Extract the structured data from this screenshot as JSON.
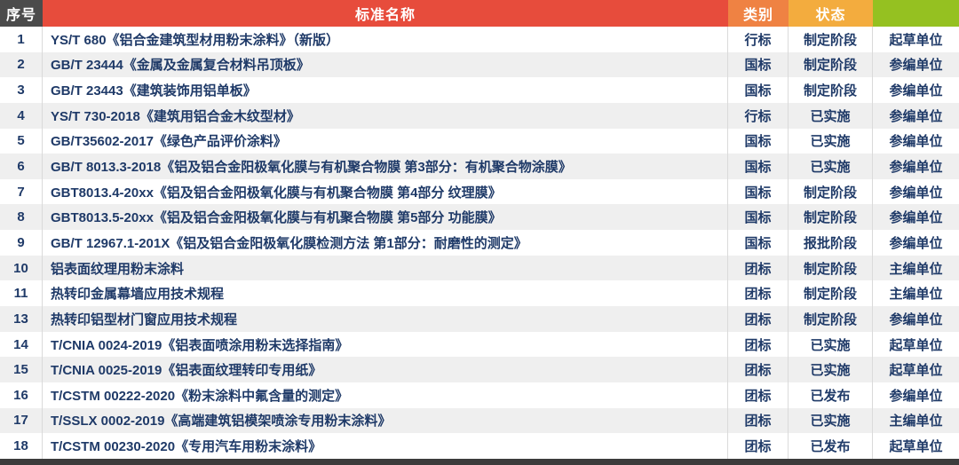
{
  "header": {
    "columns": [
      {
        "label": "序号",
        "bg": "#4b4b4b"
      },
      {
        "label": "标准名称",
        "bg": "#e74c3c"
      },
      {
        "label": "类别",
        "bg": "#ef8243"
      },
      {
        "label": "状态",
        "bg": "#f3ac3e"
      },
      {
        "label": "",
        "bg": "#95c121"
      }
    ]
  },
  "rows": [
    {
      "index": "1",
      "name": "YS/T 680《铝合金建筑型材用粉末涂料》（新版）",
      "category": "行标",
      "status": "制定阶段",
      "role": "起草单位"
    },
    {
      "index": "2",
      "name": "GB/T 23444《金属及金属复合材料吊顶板》",
      "category": "国标",
      "status": "制定阶段",
      "role": "参编单位"
    },
    {
      "index": "3",
      "name": "GB/T 23443《建筑装饰用铝单板》",
      "category": "国标",
      "status": "制定阶段",
      "role": "参编单位"
    },
    {
      "index": "4",
      "name": "YS/T 730-2018《建筑用铝合金木纹型材》",
      "category": "行标",
      "status": "已实施",
      "role": "参编单位"
    },
    {
      "index": "5",
      "name": "GB/T35602-2017《绿色产品评价涂料》",
      "category": "国标",
      "status": "已实施",
      "role": "参编单位"
    },
    {
      "index": "6",
      "name": "GB/T 8013.3-2018《铝及铝合金阳极氧化膜与有机聚合物膜 第3部分：有机聚合物涂膜》",
      "category": "国标",
      "status": "已实施",
      "role": "参编单位"
    },
    {
      "index": "7",
      "name": "GBT8013.4-20xx《铝及铝合金阳极氧化膜与有机聚合物膜 第4部分 纹理膜》",
      "category": "国标",
      "status": "制定阶段",
      "role": "参编单位"
    },
    {
      "index": "8",
      "name": "GBT8013.5-20xx《铝及铝合金阳极氧化膜与有机聚合物膜 第5部分 功能膜》",
      "category": "国标",
      "status": "制定阶段",
      "role": "参编单位"
    },
    {
      "index": "9",
      "name": "GB/T 12967.1-201X《铝及铝合金阳极氧化膜检测方法 第1部分：耐磨性的测定》",
      "category": "国标",
      "status": "报批阶段",
      "role": "参编单位"
    },
    {
      "index": "10",
      "name": "铝表面纹理用粉末涂料",
      "category": "团标",
      "status": "制定阶段",
      "role": "主编单位"
    },
    {
      "index": "11",
      "name": "热转印金属幕墙应用技术规程",
      "category": "团标",
      "status": "制定阶段",
      "role": "主编单位"
    },
    {
      "index": "13",
      "name": "热转印铝型材门窗应用技术规程",
      "category": "团标",
      "status": "制定阶段",
      "role": "参编单位"
    },
    {
      "index": "14",
      "name": "T/CNIA 0024-2019《铝表面喷涂用粉末选择指南》",
      "category": "团标",
      "status": "已实施",
      "role": "起草单位"
    },
    {
      "index": "15",
      "name": "T/CNIA 0025-2019《铝表面纹理转印专用纸》",
      "category": "团标",
      "status": "已实施",
      "role": "起草单位"
    },
    {
      "index": "16",
      "name": "T/CSTM 00222-2020《粉末涂料中氟含量的测定》",
      "category": "团标",
      "status": "已发布",
      "role": "参编单位"
    },
    {
      "index": "17",
      "name": "T/SSLX 0002-2019《高端建筑铝模架喷涂专用粉末涂料》",
      "category": "团标",
      "status": "已实施",
      "role": "主编单位"
    },
    {
      "index": "18",
      "name": "T/CSTM 00230-2020《专用汽车用粉末涂料》",
      "category": "团标",
      "status": "已发布",
      "role": "起草单位"
    }
  ],
  "colors": {
    "text": "#1f3a68",
    "stripe": "#efefef",
    "divider": "#dadada",
    "bottom_bar": "#3c3c3c"
  }
}
